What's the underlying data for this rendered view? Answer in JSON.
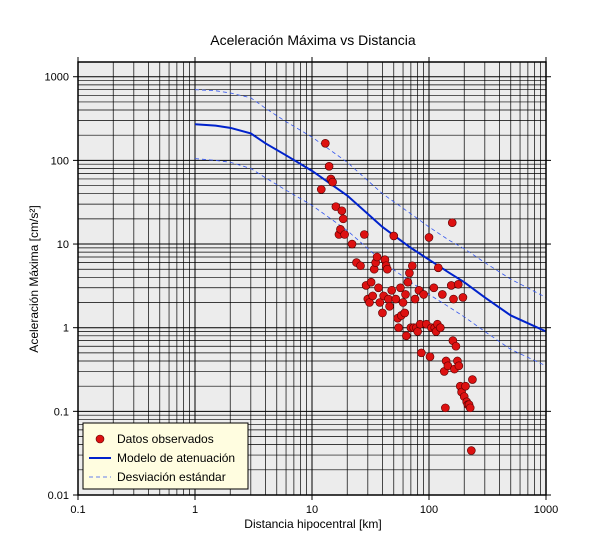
{
  "chart_data": {
    "type": "scatter",
    "title": "Aceleración Máxima vs Distancia",
    "xlabel": "Distancia hipocentral [km]",
    "ylabel": "Aceleración Máxima [cm/s²]",
    "xscale": "log",
    "yscale": "log",
    "xlim": [
      0.1,
      1000
    ],
    "ylim": [
      0.01,
      1500
    ],
    "x_ticks": [
      "0.1",
      "1",
      "10",
      "100",
      "1000"
    ],
    "y_ticks": [
      "0.01",
      "0.1",
      "1",
      "10",
      "100",
      "1000"
    ],
    "grid": true,
    "legend_position": "bottom-left",
    "colors": {
      "background": "#ececec",
      "points": "#dd1111",
      "model": "#0022cc",
      "std": "#3355ee",
      "legend_bg": "#fffde0"
    },
    "series": [
      {
        "name": "Datos observados",
        "kind": "scatter",
        "points": [
          [
            12,
            45
          ],
          [
            13,
            160
          ],
          [
            14,
            85
          ],
          [
            14.5,
            60
          ],
          [
            15,
            55
          ],
          [
            16,
            28
          ],
          [
            17,
            13
          ],
          [
            17.5,
            15
          ],
          [
            18,
            25
          ],
          [
            18.5,
            20
          ],
          [
            19,
            13
          ],
          [
            22,
            10
          ],
          [
            24,
            6
          ],
          [
            26,
            5.5
          ],
          [
            28,
            13
          ],
          [
            29,
            3.2
          ],
          [
            30,
            2.2
          ],
          [
            31,
            2.0
          ],
          [
            32,
            3.5
          ],
          [
            33,
            2.4
          ],
          [
            34,
            5
          ],
          [
            35,
            6
          ],
          [
            36,
            7
          ],
          [
            37,
            3
          ],
          [
            38,
            2.0
          ],
          [
            40,
            1.5
          ],
          [
            41,
            2.4
          ],
          [
            42,
            6.5
          ],
          [
            43,
            5.5
          ],
          [
            44,
            5
          ],
          [
            45,
            2.2
          ],
          [
            46,
            1.8
          ],
          [
            48,
            2.8
          ],
          [
            50,
            12.5
          ],
          [
            52,
            2.2
          ],
          [
            54,
            1.3
          ],
          [
            55,
            1.0
          ],
          [
            57,
            3.0
          ],
          [
            58,
            1.4
          ],
          [
            60,
            2.0
          ],
          [
            62,
            1.5
          ],
          [
            63,
            2.5
          ],
          [
            64,
            0.8
          ],
          [
            66,
            3.5
          ],
          [
            68,
            4.5
          ],
          [
            70,
            1.0
          ],
          [
            72,
            5.5
          ],
          [
            74,
            1.0
          ],
          [
            76,
            2.2
          ],
          [
            78,
            1.0
          ],
          [
            80,
            0.9
          ],
          [
            82,
            2.8
          ],
          [
            84,
            1.1
          ],
          [
            86,
            0.5
          ],
          [
            90,
            2.5
          ],
          [
            95,
            1.1
          ],
          [
            100,
            12
          ],
          [
            102,
            0.45
          ],
          [
            105,
            1.0
          ],
          [
            110,
            3
          ],
          [
            112,
            1.0
          ],
          [
            115,
            0.9
          ],
          [
            118,
            1.1
          ],
          [
            120,
            5.2
          ],
          [
            125,
            1.0
          ],
          [
            130,
            2.5
          ],
          [
            135,
            0.3
          ],
          [
            138,
            0.11
          ],
          [
            140,
            0.4
          ],
          [
            145,
            0.35
          ],
          [
            155,
            3.2
          ],
          [
            158,
            18
          ],
          [
            160,
            0.7
          ],
          [
            162,
            2.2
          ],
          [
            165,
            0.32
          ],
          [
            170,
            0.6
          ],
          [
            175,
            0.4
          ],
          [
            178,
            3.3
          ],
          [
            180,
            0.35
          ],
          [
            185,
            0.2
          ],
          [
            190,
            0.17
          ],
          [
            195,
            2.3
          ],
          [
            200,
            0.15
          ],
          [
            205,
            0.2
          ],
          [
            210,
            0.13
          ],
          [
            215,
            0.12
          ],
          [
            220,
            0.12
          ],
          [
            225,
            0.11
          ],
          [
            230,
            0.034
          ],
          [
            235,
            0.24
          ]
        ]
      },
      {
        "name": "Modelo de atenuación",
        "kind": "line",
        "points": [
          [
            1,
            270
          ],
          [
            1.5,
            260
          ],
          [
            2,
            245
          ],
          [
            3,
            210
          ],
          [
            4,
            160
          ],
          [
            6,
            115
          ],
          [
            10,
            75
          ],
          [
            20,
            38
          ],
          [
            40,
            16
          ],
          [
            70,
            9
          ],
          [
            100,
            6.5
          ],
          [
            150,
            4.5
          ],
          [
            200,
            3.5
          ],
          [
            300,
            2.3
          ],
          [
            500,
            1.4
          ],
          [
            1000,
            0.9
          ]
        ]
      },
      {
        "name": "Desviación estándar",
        "kind": "dashed",
        "points": [
          [
            1,
            700
          ],
          [
            1.5,
            680
          ],
          [
            2,
            640
          ],
          [
            3,
            560
          ],
          [
            4,
            420
          ],
          [
            6,
            290
          ],
          [
            10,
            190
          ],
          [
            20,
            95
          ],
          [
            40,
            40
          ],
          [
            70,
            23
          ],
          [
            100,
            16
          ],
          [
            150,
            11
          ],
          [
            200,
            8.8
          ],
          [
            300,
            6
          ],
          [
            500,
            3.8
          ],
          [
            1000,
            2.3
          ]
        ]
      },
      {
        "kind": "dashed",
        "points": [
          [
            1,
            105
          ],
          [
            1.5,
            100
          ],
          [
            2,
            95
          ],
          [
            3,
            80
          ],
          [
            4,
            62
          ],
          [
            6,
            44
          ],
          [
            10,
            29
          ],
          [
            20,
            14.5
          ],
          [
            40,
            6.2
          ],
          [
            70,
            3.5
          ],
          [
            100,
            2.5
          ],
          [
            150,
            1.75
          ],
          [
            200,
            1.35
          ],
          [
            300,
            0.9
          ],
          [
            500,
            0.55
          ],
          [
            1000,
            0.35
          ]
        ]
      }
    ]
  }
}
